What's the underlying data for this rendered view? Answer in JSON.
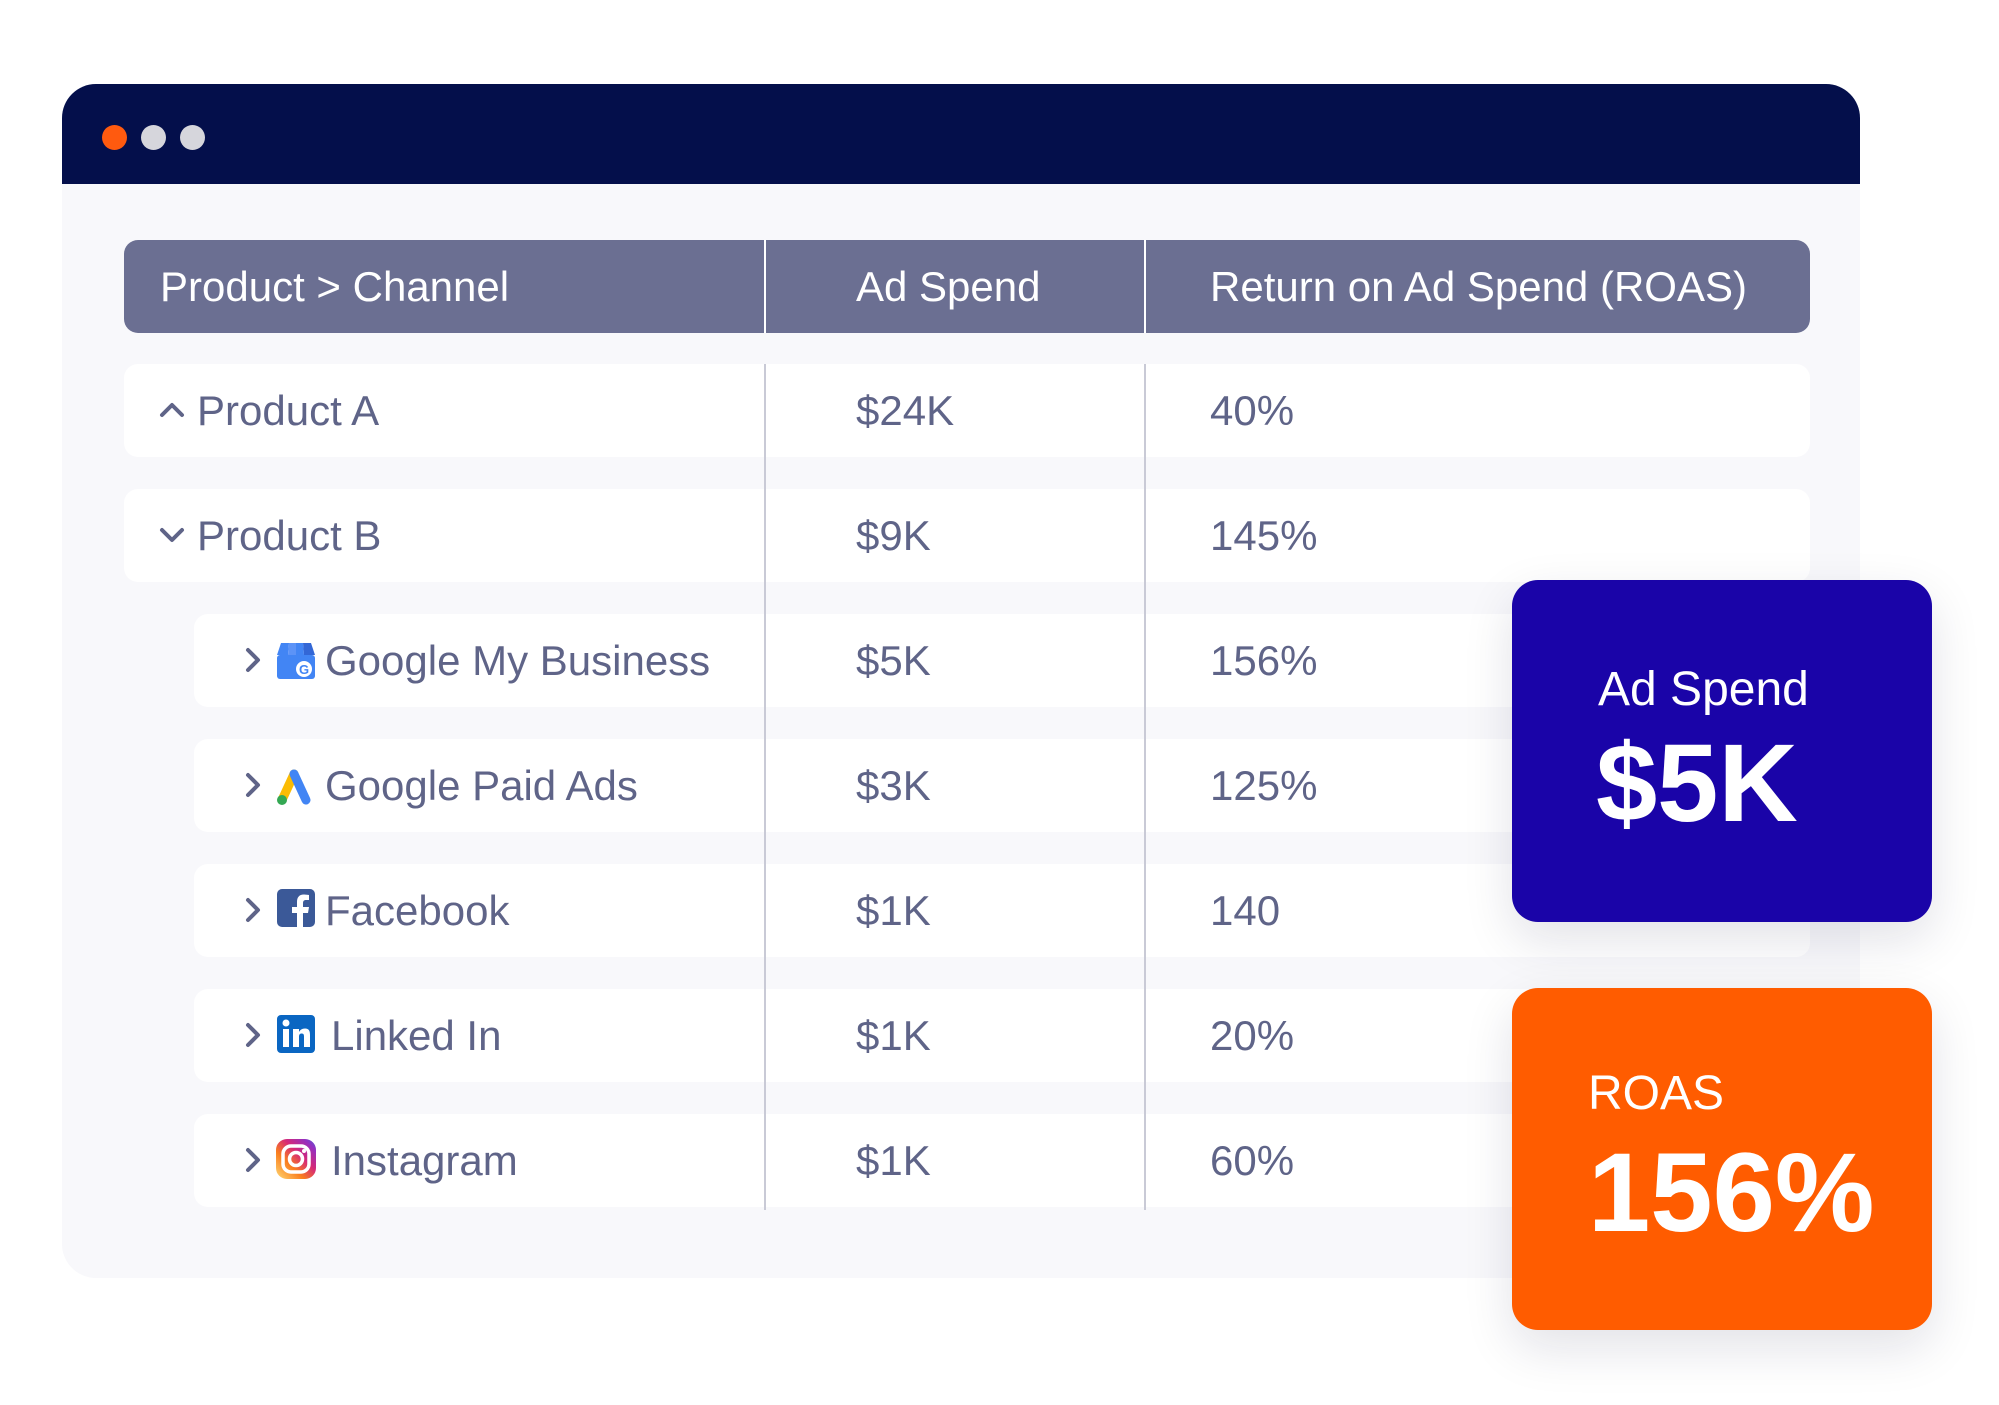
{
  "window": {
    "controls": [
      "close-dot",
      "minimize-dot",
      "maximize-dot"
    ]
  },
  "table": {
    "headers": {
      "product_channel": "Product > Channel",
      "ad_spend": "Ad Spend",
      "roas": "Return on Ad Spend (ROAS)"
    },
    "rows": [
      {
        "label": "Product A",
        "ad_spend": "$24K",
        "roas": "40%",
        "level": 0,
        "expanded": true,
        "icon": "chevron-up-icon"
      },
      {
        "label": "Product B",
        "ad_spend": "$9K",
        "roas": "145%",
        "level": 0,
        "expanded": true,
        "icon": "chevron-down-icon"
      },
      {
        "label": "Google My Business",
        "ad_spend": "$5K",
        "roas": "156%",
        "level": 1,
        "brand_icon": "google-my-business-icon"
      },
      {
        "label": "Google Paid Ads",
        "ad_spend": "$3K",
        "roas": "125%",
        "level": 1,
        "brand_icon": "google-ads-icon"
      },
      {
        "label": "Facebook",
        "ad_spend": "$1K",
        "roas": "140",
        "level": 1,
        "brand_icon": "facebook-icon"
      },
      {
        "label": "Linked In",
        "ad_spend": "$1K",
        "roas": "20%",
        "level": 1,
        "brand_icon": "linkedin-icon"
      },
      {
        "label": "Instagram",
        "ad_spend": "$1K",
        "roas": "60%",
        "level": 1,
        "brand_icon": "instagram-icon"
      }
    ]
  },
  "kpi_cards": {
    "ad_spend": {
      "label": "Ad Spend",
      "value": "$5K",
      "color": "#1a04a8"
    },
    "roas": {
      "label": "ROAS",
      "value": "156%",
      "color": "#ff5c00"
    }
  },
  "colors": {
    "titlebar": "#040f4b",
    "header": "#6b6f92",
    "text": "#5f6488",
    "accent_orange": "#ff5c00",
    "accent_blue": "#1a04a8"
  }
}
